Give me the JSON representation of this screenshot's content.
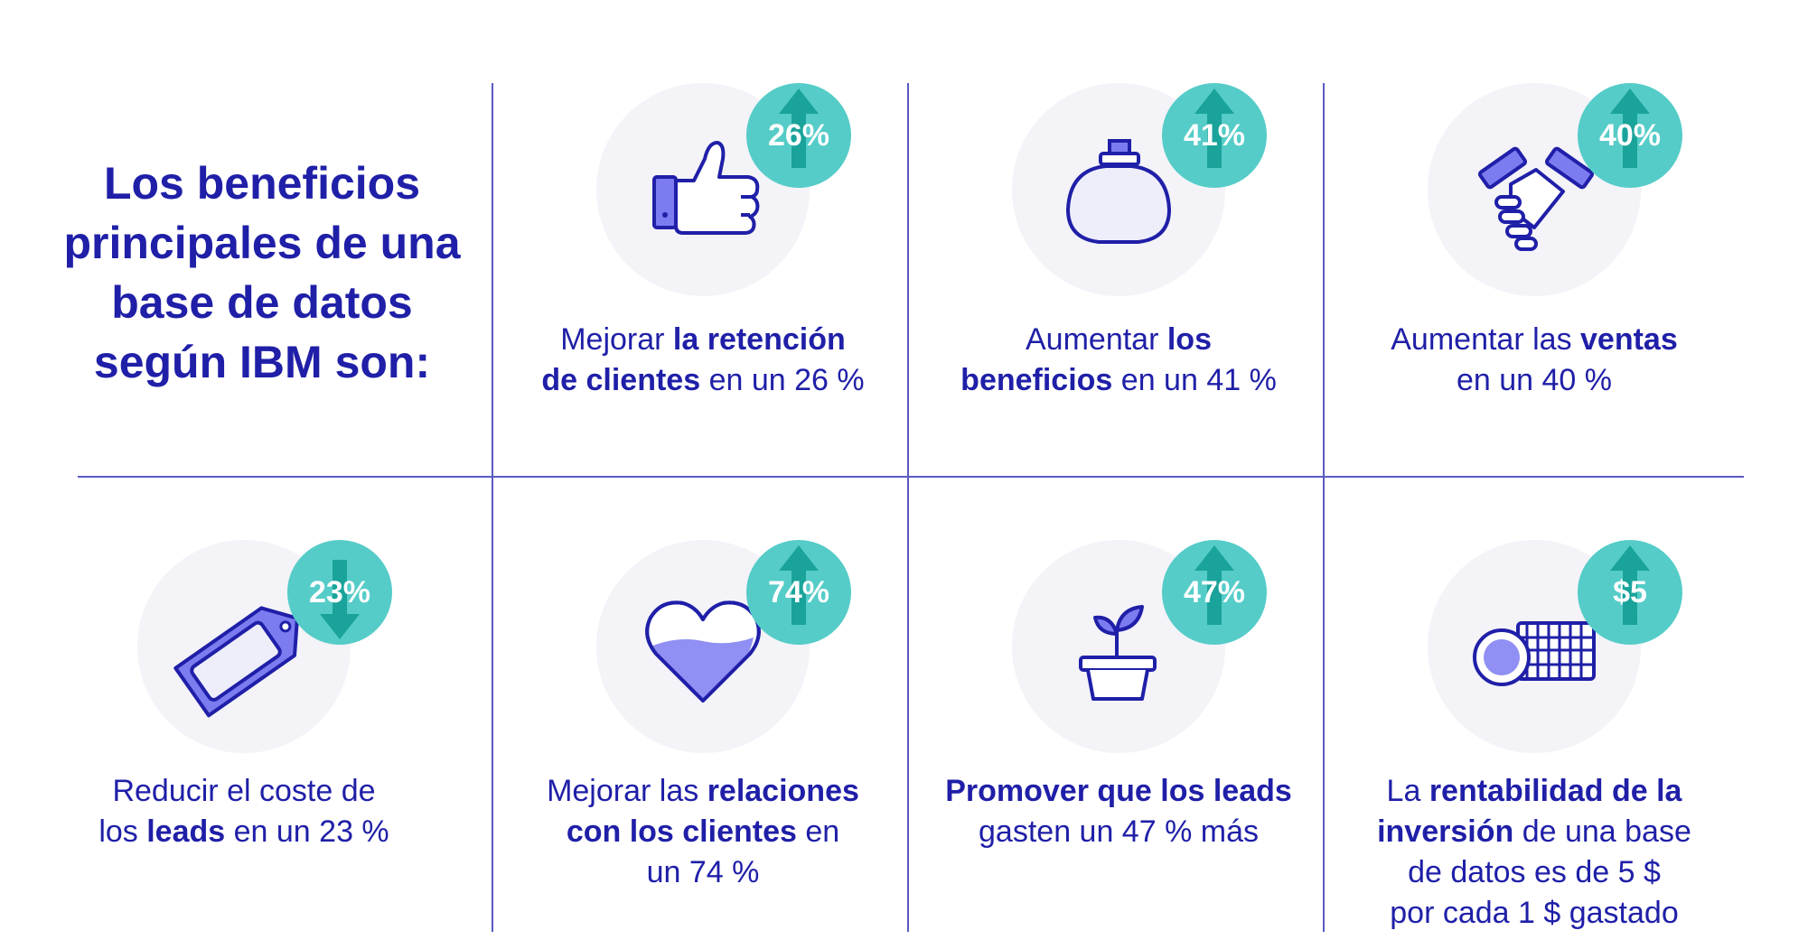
{
  "title": [
    "Los beneficios",
    "principales de una",
    "base de datos",
    "según IBM son:"
  ],
  "colors": {
    "text": "#1f1fa8",
    "badge": "#55ccc8",
    "arrow": "#1aa39a",
    "circle": "#f3f3f8",
    "lines": "#5a5ac0"
  },
  "cards": [
    {
      "badge": "26%",
      "arrow": "up",
      "icon": "thumbs-up-icon",
      "caption": [
        [
          {
            "t": "Mejorar "
          },
          {
            "t": "la retención",
            "b": true
          }
        ],
        [
          {
            "t": "de clientes",
            "b": true
          },
          {
            "t": " en un 26 %"
          }
        ]
      ]
    },
    {
      "badge": "41%",
      "arrow": "up",
      "icon": "money-bag-icon",
      "caption": [
        [
          {
            "t": "Aumentar "
          },
          {
            "t": "los",
            "b": true
          }
        ],
        [
          {
            "t": "beneficios",
            "b": true
          },
          {
            "t": " en un 41 %"
          }
        ]
      ]
    },
    {
      "badge": "40%",
      "arrow": "up",
      "icon": "handshake-icon",
      "caption": [
        [
          {
            "t": "Aumentar las "
          },
          {
            "t": "ventas",
            "b": true
          }
        ],
        [
          {
            "t": "en un 40 %"
          }
        ]
      ]
    },
    {
      "badge": "23%",
      "arrow": "down",
      "icon": "price-tag-icon",
      "caption": [
        [
          {
            "t": "Reducir el coste de"
          }
        ],
        [
          {
            "t": "los "
          },
          {
            "t": "leads",
            "b": true
          },
          {
            "t": " en un 23 %"
          }
        ]
      ]
    },
    {
      "badge": "74%",
      "arrow": "up",
      "icon": "heart-icon",
      "caption": [
        [
          {
            "t": "Mejorar las "
          },
          {
            "t": "relaciones",
            "b": true
          }
        ],
        [
          {
            "t": "con los clientes",
            "b": true
          },
          {
            "t": " en"
          }
        ],
        [
          {
            "t": "un 74 %"
          }
        ]
      ]
    },
    {
      "badge": "47%",
      "arrow": "up",
      "icon": "plant-pot-icon",
      "caption": [
        [
          {
            "t": "Promover que los leads",
            "b": true
          }
        ],
        [
          {
            "t": "gasten un 47 % más"
          }
        ]
      ]
    },
    {
      "badge": "$5",
      "arrow": "up",
      "icon": "coins-icon",
      "caption": [
        [
          {
            "t": "La "
          },
          {
            "t": "rentabilidad de la",
            "b": true
          }
        ],
        [
          {
            "t": "inversión",
            "b": true
          },
          {
            "t": " de una base"
          }
        ],
        [
          {
            "t": "de datos es de 5 $"
          }
        ],
        [
          {
            "t": "por cada 1 $ gastado"
          }
        ]
      ]
    }
  ]
}
